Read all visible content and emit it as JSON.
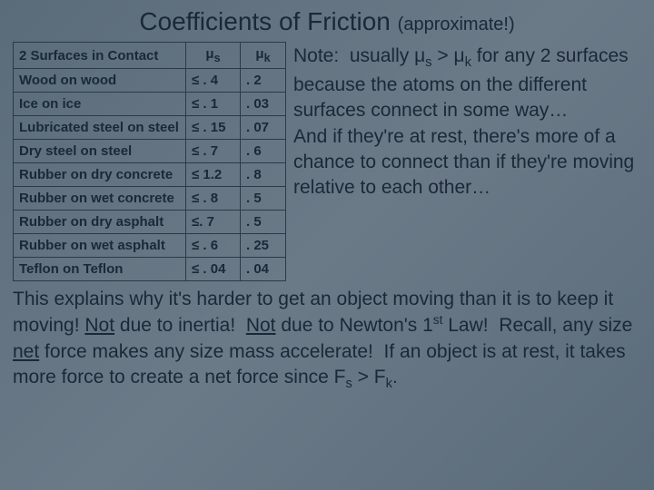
{
  "title": {
    "main": "Coefficients of Friction",
    "suffix": "(approximate!)"
  },
  "table": {
    "headers": {
      "surfaces": "2 Surfaces in Contact",
      "mus_html": "μ<sub>s</sub>",
      "muk_html": "μ<sub>k</sub>"
    },
    "rows": [
      {
        "s": "Wood on wood",
        "mus": "≤ . 4",
        "muk": ". 2"
      },
      {
        "s": "Ice on ice",
        "mus": "≤ . 1",
        "muk": ". 03"
      },
      {
        "s": "Lubricated steel on steel",
        "mus": "≤ . 15",
        "muk": ". 07"
      },
      {
        "s": "Dry steel on steel",
        "mus": "≤ . 7",
        "muk": ". 6"
      },
      {
        "s": "Rubber on dry concrete",
        "mus": "≤ 1.2",
        "muk": ". 8"
      },
      {
        "s": "Rubber on wet concrete",
        "mus": "≤ . 8",
        "muk": ". 5"
      },
      {
        "s": "Rubber on dry asphalt",
        "mus": "≤. 7",
        "muk": ". 5"
      },
      {
        "s": "Rubber on wet asphalt",
        "mus": "≤ . 6",
        "muk": ". 25"
      },
      {
        "s": "Teflon on Teflon",
        "mus": "≤ . 04",
        "muk": ". 04"
      }
    ]
  },
  "note_html": "Note:&nbsp; usually μ<span class=\"sub\">s</span> &gt; μ<span class=\"sub\">k</span> for any 2 surfaces<br>because the atoms on the different surfaces connect in some way…<br>And if they're at rest, there's more of a chance to connect than if they're moving relative to each other…",
  "bottom_html": "This explains why it's harder to get an object moving than it is to keep it moving! <span class=\"u\">Not</span> due to inertia!&nbsp; <span class=\"u\">Not</span> due to Newton's 1<span class=\"sup\">st</span> Law!&nbsp; Recall, any size <span class=\"u\">net</span> force makes any size mass accelerate!&nbsp; If an object is at rest, it takes more force to create a net force since F<span class=\"sub2\">s</span> &gt; F<span class=\"sub2\">k</span>."
}
